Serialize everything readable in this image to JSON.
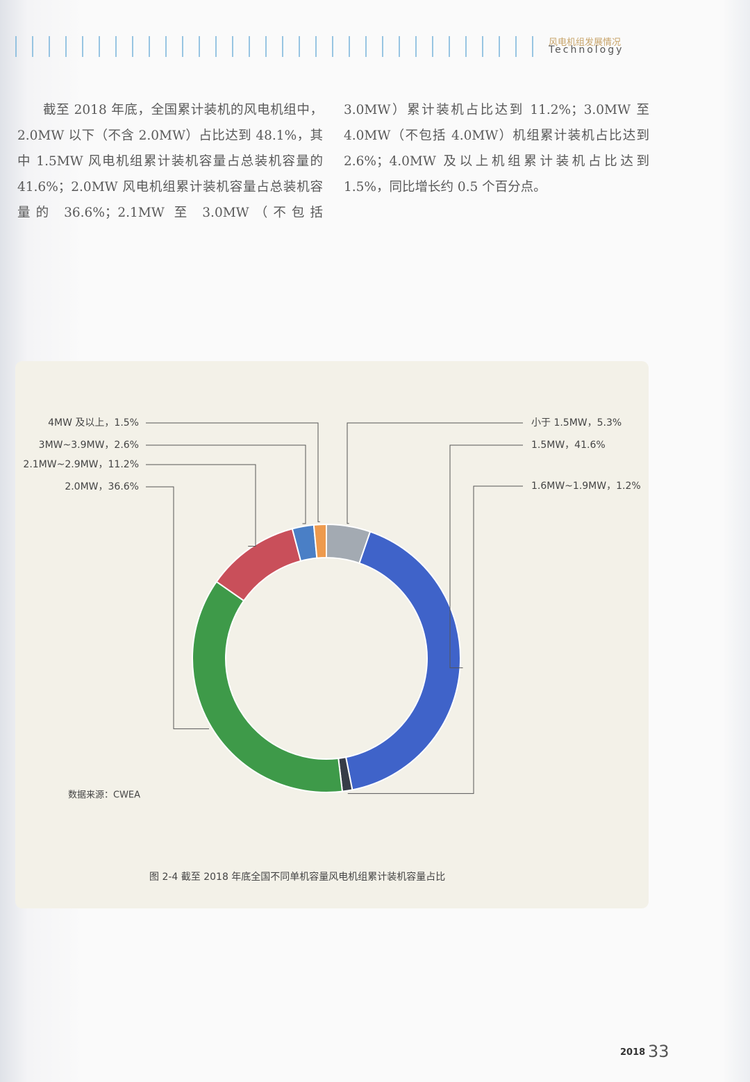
{
  "header": {
    "title": "风电机组发展情况",
    "subtitle": "Technology"
  },
  "body": "截至 2018 年底，全国累计装机的风电机组中，2.0MW 以下（不含 2.0MW）占比达到 48.1%，其中 1.5MW 风电机组累计装机容量占总装机容量的 41.6%；2.0MW 风电机组累计装机容量占总装机容量的 36.6%；2.1MW 至 3.0MW（不包括 3.0MW）累计装机占比达到 11.2%；3.0MW 至 4.0MW（不包括 4.0MW）机组累计装机占比达到 2.6%；4.0MW 及以上机组累计装机占比达到 1.5%，同比增长约 0.5 个百分点。",
  "chart_data": {
    "type": "donut",
    "values": [
      5.3,
      41.6,
      1.2,
      36.6,
      11.2,
      2.6,
      1.5
    ],
    "value_labels": [
      "小于 1.5MW，5.3%",
      "1.5MW，41.6%",
      "1.6MW~1.9MW，1.2%",
      "2.0MW，36.6%",
      "2.1MW~2.9MW，11.2%",
      "3MW~3.9MW，2.6%",
      "4MW 及以上，1.5%"
    ],
    "colors": [
      "#a3aab2",
      "#3f63c9",
      "#373c48",
      "#3e9a49",
      "#c94f5a",
      "#4a7fc6",
      "#ee9a4d"
    ],
    "source": "数据来源：CWEA",
    "caption": "图 2-4 截至 2018 年底全国不同单机容量风电机组累计装机容量占比"
  },
  "footer": {
    "year": "2018",
    "page": "33"
  }
}
